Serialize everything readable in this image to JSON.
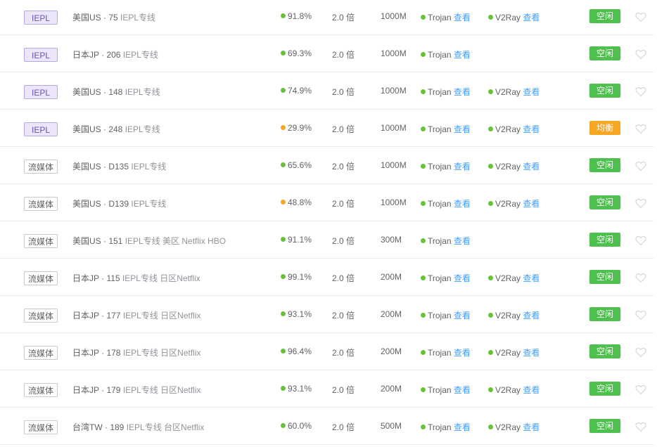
{
  "colors": {
    "green": "#67c23a",
    "orange": "#f5a623",
    "link": "#409eff",
    "idle": "#4ec04e",
    "busy": "#f5a623"
  },
  "link_label": "查看",
  "rows": [
    {
      "tag": "IEPL",
      "tag_type": "iepl",
      "name": "美国US · 75",
      "sub": "IEPL专线",
      "uptime": "91.8%",
      "dot": "green",
      "rate": "2.0 倍",
      "bw": "1000M",
      "p1": "Trojan",
      "p2": "V2Ray",
      "status": "空闲",
      "status_type": "idle"
    },
    {
      "tag": "IEPL",
      "tag_type": "iepl",
      "name": "日本JP · 206",
      "sub": "IEPL专线",
      "uptime": "69.3%",
      "dot": "green",
      "rate": "2.0 倍",
      "bw": "1000M",
      "p1": "Trojan",
      "p2": "",
      "status": "空闲",
      "status_type": "idle"
    },
    {
      "tag": "IEPL",
      "tag_type": "iepl",
      "name": "美国US · 148",
      "sub": "IEPL专线",
      "uptime": "74.9%",
      "dot": "green",
      "rate": "2.0 倍",
      "bw": "1000M",
      "p1": "Trojan",
      "p2": "V2Ray",
      "status": "空闲",
      "status_type": "idle"
    },
    {
      "tag": "IEPL",
      "tag_type": "iepl",
      "name": "美国US · 248",
      "sub": "IEPL专线",
      "uptime": "29.9%",
      "dot": "orange",
      "rate": "2.0 倍",
      "bw": "1000M",
      "p1": "Trojan",
      "p2": "V2Ray",
      "status": "均衡",
      "status_type": "busy"
    },
    {
      "tag": "流媒体",
      "tag_type": "media",
      "name": "美国US · D135",
      "sub": "IEPL专线",
      "uptime": "65.6%",
      "dot": "green",
      "rate": "2.0 倍",
      "bw": "1000M",
      "p1": "Trojan",
      "p2": "V2Ray",
      "status": "空闲",
      "status_type": "idle"
    },
    {
      "tag": "流媒体",
      "tag_type": "media",
      "name": "美国US · D139",
      "sub": "IEPL专线",
      "uptime": "48.8%",
      "dot": "orange",
      "rate": "2.0 倍",
      "bw": "1000M",
      "p1": "Trojan",
      "p2": "V2Ray",
      "status": "空闲",
      "status_type": "idle"
    },
    {
      "tag": "流媒体",
      "tag_type": "media",
      "name": "美国US · 151",
      "sub": "IEPL专线 美区 Netflix HBO",
      "uptime": "91.1%",
      "dot": "green",
      "rate": "2.0 倍",
      "bw": "300M",
      "p1": "Trojan",
      "p2": "",
      "status": "空闲",
      "status_type": "idle"
    },
    {
      "tag": "流媒体",
      "tag_type": "media",
      "name": "日本JP · 115",
      "sub": "IEPL专线 日区Netflix",
      "uptime": "99.1%",
      "dot": "green",
      "rate": "2.0 倍",
      "bw": "200M",
      "p1": "Trojan",
      "p2": "V2Ray",
      "status": "空闲",
      "status_type": "idle"
    },
    {
      "tag": "流媒体",
      "tag_type": "media",
      "name": "日本JP · 177",
      "sub": "IEPL专线 日区Netflix",
      "uptime": "93.1%",
      "dot": "green",
      "rate": "2.0 倍",
      "bw": "200M",
      "p1": "Trojan",
      "p2": "V2Ray",
      "status": "空闲",
      "status_type": "idle"
    },
    {
      "tag": "流媒体",
      "tag_type": "media",
      "name": "日本JP · 178",
      "sub": "IEPL专线 日区Netflix",
      "uptime": "96.4%",
      "dot": "green",
      "rate": "2.0 倍",
      "bw": "200M",
      "p1": "Trojan",
      "p2": "V2Ray",
      "status": "空闲",
      "status_type": "idle"
    },
    {
      "tag": "流媒体",
      "tag_type": "media",
      "name": "日本JP · 179",
      "sub": "IEPL专线 日区Netflix",
      "uptime": "93.1%",
      "dot": "green",
      "rate": "2.0 倍",
      "bw": "200M",
      "p1": "Trojan",
      "p2": "V2Ray",
      "status": "空闲",
      "status_type": "idle"
    },
    {
      "tag": "流媒体",
      "tag_type": "media",
      "name": "台湾TW · 189",
      "sub": "IEPL专线 台区Netflix",
      "uptime": "60.0%",
      "dot": "green",
      "rate": "2.0 倍",
      "bw": "500M",
      "p1": "Trojan",
      "p2": "V2Ray",
      "status": "空闲",
      "status_type": "idle"
    }
  ]
}
